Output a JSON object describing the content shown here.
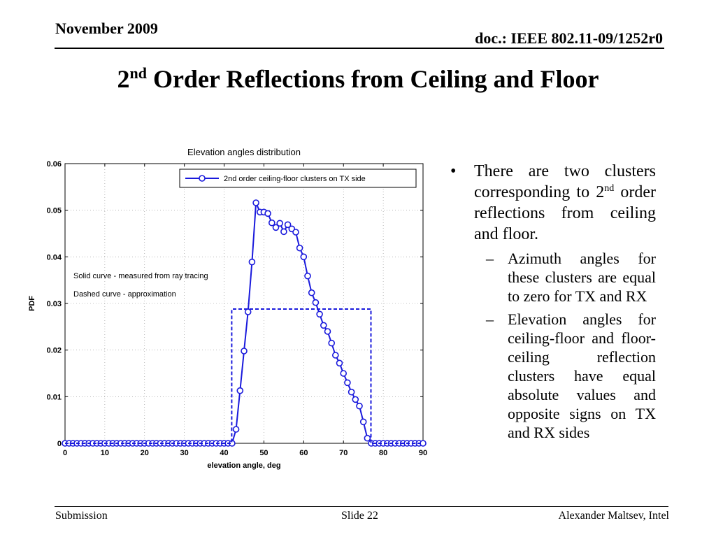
{
  "header": {
    "date": "November 2009",
    "doc": "doc.: IEEE 802.11-09/1252r0"
  },
  "title": {
    "prefix": "2",
    "sup": "nd",
    "rest": " Order Reflections from Ceiling and Floor"
  },
  "bullets": {
    "main_part1": "There are two clusters corresponding to 2",
    "main_sup": "nd",
    "main_part2": " order reflections from ceiling and floor.",
    "sub1": "Azimuth angles for these clusters are equal to zero for TX and RX",
    "sub2": "Elevation angles for ceiling-floor and floor-ceiling reflection clusters have equal absolute values and opposite signs on TX and RX sides"
  },
  "footer": {
    "left": "Submission",
    "center": "Slide 22",
    "right": "Alexander Maltsev, Intel"
  },
  "chart_data": {
    "type": "line",
    "title": "Elevation angles distribution",
    "xlabel": "elevation angle, deg",
    "ylabel": "PDF",
    "xlim": [
      0,
      90
    ],
    "ylim": [
      0,
      0.06
    ],
    "xticks": [
      "0",
      "10",
      "20",
      "30",
      "40",
      "50",
      "60",
      "70",
      "80",
      "90"
    ],
    "yticks": [
      "0",
      "0.01",
      "0.02",
      "0.03",
      "0.04",
      "0.05",
      "0.06"
    ],
    "grid": true,
    "legend": {
      "entry": "2nd order ceiling-floor clusters on TX side",
      "position": "top-right"
    },
    "annotations": [
      "Solid curve - measured from ray tracing",
      "Dashed curve - approximation"
    ],
    "series": [
      {
        "name": "2nd order ceiling-floor clusters on TX side",
        "style": "solid-circle-markers",
        "color": "#1a1adc",
        "x": [
          0,
          1,
          2,
          3,
          4,
          5,
          6,
          7,
          8,
          9,
          10,
          11,
          12,
          13,
          14,
          15,
          16,
          17,
          18,
          19,
          20,
          21,
          22,
          23,
          24,
          25,
          26,
          27,
          28,
          29,
          30,
          31,
          32,
          33,
          34,
          35,
          36,
          37,
          38,
          39,
          40,
          41,
          42,
          43,
          44,
          45,
          46,
          47,
          48,
          49,
          50,
          51,
          52,
          53,
          54,
          55,
          56,
          57,
          58,
          59,
          60,
          61,
          62,
          63,
          64,
          65,
          66,
          67,
          68,
          69,
          70,
          71,
          72,
          73,
          74,
          75,
          76,
          77,
          78,
          79,
          80,
          81,
          82,
          83,
          84,
          85,
          86,
          87,
          88,
          89,
          90
        ],
        "y": [
          0,
          0,
          0,
          0,
          0,
          0,
          0,
          0,
          0,
          0,
          0,
          0,
          0,
          0,
          0,
          0,
          0,
          0,
          0,
          0,
          0,
          0,
          0,
          0,
          0,
          0,
          0,
          0,
          0,
          0,
          0,
          0,
          0,
          0,
          0,
          0,
          0,
          0,
          0,
          0,
          0,
          0,
          0,
          0.003,
          0.0113,
          0.0198,
          0.0282,
          0.0389,
          0.0516,
          0.0496,
          0.0496,
          0.0493,
          0.0473,
          0.0463,
          0.0472,
          0.0454,
          0.0469,
          0.046,
          0.0453,
          0.0419,
          0.04,
          0.0359,
          0.0323,
          0.0302,
          0.0277,
          0.0253,
          0.024,
          0.0215,
          0.0189,
          0.0172,
          0.015,
          0.013,
          0.011,
          0.0094,
          0.008,
          0.0046,
          0.0011,
          0,
          0,
          0,
          0,
          0,
          0,
          0,
          0,
          0,
          0,
          0,
          0,
          0,
          0
        ]
      },
      {
        "name": "",
        "style": "dashed",
        "color": "#1a1adc",
        "x": [
          0,
          41.9,
          41.9,
          76.9,
          76.9,
          90
        ],
        "y": [
          0,
          0,
          0.0288,
          0.0288,
          0,
          0
        ]
      }
    ]
  }
}
